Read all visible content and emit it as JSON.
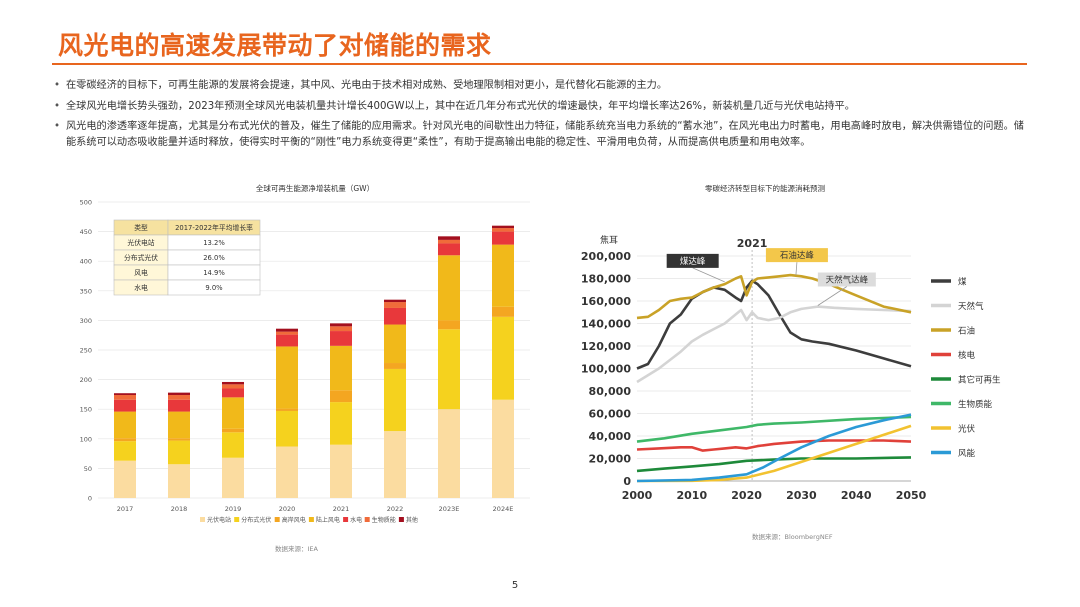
{
  "title": "风光电的高速发展带动了对储能的需求",
  "bullets": [
    "在零碳经济的目标下，可再生能源的发展将会提速，其中风、光电由于技术相对成熟、受地理限制相对更小，是代替化石能源的主力。",
    "全球风光电增长势头强劲，2023年预测全球风光电装机量共计增长400GW以上，其中在近几年分布式光伏的增速最快，年平均增长率达26%，新装机量几近与光伏电站持平。",
    "风光电的渗透率逐年提高，尤其是分布式光伏的普及，催生了储能的应用需求。针对风光电的间歇性出力特征，储能系统充当电力系统的“蓄水池”，在风光电出力时蓄电，用电高峰时放电，解决供需错位的问题。储能系统可以动态吸收能量并适时释放，使得实时平衡的“刚性”电力系统变得更“柔性”，有助于提高输出电能的稳定性、平滑用电负荷，从而提高供电质量和用电效率。"
  ],
  "chart_data": [
    {
      "type": "bar",
      "stacked": true,
      "title": "全球可再生能源净增装机量（GW）",
      "categories": [
        "2017",
        "2018",
        "2019",
        "2020",
        "2021",
        "2022",
        "2023E",
        "2024E"
      ],
      "ylim": [
        0,
        500
      ],
      "yticks": [
        "0",
        "50",
        "100",
        "150",
        "200",
        "250",
        "300",
        "350",
        "400",
        "450",
        "500"
      ],
      "series": [
        {
          "name": "光伏电站",
          "color": "#fbdca0",
          "values": [
            63,
            57,
            68,
            87,
            90,
            113,
            150,
            166
          ]
        },
        {
          "name": "分布式光伏",
          "color": "#f5d21e",
          "values": [
            33,
            40,
            43,
            60,
            72,
            105,
            135,
            140
          ]
        },
        {
          "name": "高岸风电",
          "color": "#f4a621",
          "values": [
            5,
            4,
            6,
            4,
            20,
            10,
            15,
            17
          ]
        },
        {
          "name": "陆上风电",
          "color": "#f1b91a",
          "values": [
            45,
            45,
            53,
            105,
            75,
            65,
            110,
            105
          ]
        },
        {
          "name": "水电",
          "color": "#e8383b",
          "values": [
            20,
            20,
            15,
            20,
            25,
            28,
            20,
            22
          ]
        },
        {
          "name": "生物质能",
          "color": "#f06b3a",
          "values": [
            8,
            8,
            7,
            5,
            8,
            10,
            6,
            6
          ]
        },
        {
          "name": "其他",
          "color": "#a30f1e",
          "values": [
            3,
            4,
            4,
            5,
            5,
            4,
            6,
            4
          ]
        }
      ],
      "table": {
        "headers": [
          "类型",
          "2017-2022年平均增长率"
        ],
        "rows": [
          [
            "光伏电站",
            "13.2%"
          ],
          [
            "分布式光伏",
            "26.0%"
          ],
          [
            "风电",
            "14.9%"
          ],
          [
            "水电",
            "9.0%"
          ]
        ]
      },
      "source": "数据来源：IEA"
    },
    {
      "type": "line",
      "title": "零碳经济转型目标下的能源消耗预测",
      "ylabel": "焦耳",
      "xlim": [
        2000,
        2050
      ],
      "ylim": [
        0,
        200000
      ],
      "xticks": [
        "2000",
        "2010",
        "2020",
        "2030",
        "2040",
        "2050"
      ],
      "yticks": [
        "0",
        "20,000",
        "40,000",
        "60,000",
        "80,000",
        "100,000",
        "120,000",
        "140,000",
        "160,000",
        "180,000",
        "200,000"
      ],
      "marker_year": "2021",
      "annotations": [
        {
          "label": "煤达峰",
          "x": 2016,
          "y": 177000
        },
        {
          "label": "石油达峰",
          "x": 2029,
          "y": 183000
        },
        {
          "label": "天然气达峰",
          "x": 2033,
          "y": 156000
        }
      ],
      "series": [
        {
          "name": "煤",
          "color": "#3d3d3d",
          "x": [
            2000,
            2002,
            2004,
            2006,
            2008,
            2010,
            2012,
            2014,
            2016,
            2018,
            2019,
            2020,
            2021,
            2022,
            2024,
            2026,
            2028,
            2030,
            2032,
            2035,
            2040,
            2045,
            2050
          ],
          "y": [
            100000,
            104000,
            120000,
            140000,
            148000,
            162000,
            168000,
            172000,
            170000,
            163000,
            160000,
            172000,
            178000,
            175000,
            165000,
            148000,
            132000,
            126000,
            124000,
            122000,
            116000,
            109000,
            102000
          ]
        },
        {
          "name": "天然气",
          "color": "#d4d4d4",
          "x": [
            2000,
            2004,
            2008,
            2010,
            2012,
            2014,
            2016,
            2018,
            2019,
            2020,
            2021,
            2022,
            2024,
            2026,
            2028,
            2030,
            2033,
            2036,
            2040,
            2045,
            2050
          ],
          "y": [
            88000,
            100000,
            115000,
            124000,
            130000,
            135000,
            140000,
            148000,
            152000,
            143000,
            150000,
            145000,
            143000,
            145000,
            150000,
            153000,
            155000,
            154000,
            153000,
            152000,
            151000
          ]
        },
        {
          "name": "石油",
          "color": "#c9a227",
          "x": [
            2000,
            2002,
            2004,
            2006,
            2008,
            2010,
            2012,
            2014,
            2016,
            2018,
            2019,
            2020,
            2021,
            2022,
            2024,
            2026,
            2028,
            2030,
            2032,
            2035,
            2040,
            2045,
            2050
          ],
          "y": [
            145000,
            146000,
            152000,
            160000,
            162000,
            163000,
            168000,
            172000,
            175000,
            180000,
            182000,
            165000,
            177000,
            180000,
            181000,
            182000,
            183000,
            182000,
            180000,
            175000,
            165000,
            155000,
            150000
          ]
        },
        {
          "name": "核电",
          "color": "#e0413a",
          "x": [
            2000,
            2004,
            2008,
            2010,
            2012,
            2014,
            2016,
            2018,
            2020,
            2022,
            2025,
            2030,
            2035,
            2040,
            2045,
            2050
          ],
          "y": [
            28000,
            29000,
            30000,
            30000,
            27000,
            28000,
            29000,
            30000,
            29000,
            31000,
            33000,
            35000,
            36000,
            36000,
            36000,
            35000
          ]
        },
        {
          "name": "其它可再生",
          "color": "#1e8a3a",
          "x": [
            2000,
            2005,
            2010,
            2015,
            2020,
            2025,
            2030,
            2040,
            2050
          ],
          "y": [
            9000,
            11000,
            13000,
            15000,
            18000,
            19000,
            20000,
            20000,
            21000
          ]
        },
        {
          "name": "生物质能",
          "color": "#3fb868",
          "x": [
            2000,
            2005,
            2010,
            2015,
            2020,
            2022,
            2025,
            2030,
            2040,
            2050
          ],
          "y": [
            35000,
            38000,
            42000,
            45000,
            48000,
            50000,
            51000,
            52000,
            55000,
            57000
          ]
        },
        {
          "name": "光伏",
          "color": "#f2c230",
          "x": [
            2000,
            2010,
            2015,
            2020,
            2025,
            2030,
            2035,
            2040,
            2045,
            2050
          ],
          "y": [
            0,
            200,
            1000,
            3000,
            9000,
            17000,
            25000,
            33000,
            41000,
            49000
          ]
        },
        {
          "name": "风能",
          "color": "#2b9ad6",
          "x": [
            2000,
            2010,
            2015,
            2020,
            2023,
            2026,
            2030,
            2035,
            2040,
            2045,
            2050
          ],
          "y": [
            0,
            1000,
            3000,
            6000,
            12000,
            20000,
            30000,
            40000,
            48000,
            54000,
            59000
          ]
        }
      ],
      "source": "数据来源：BloombergNEF"
    }
  ],
  "page_number": "5"
}
